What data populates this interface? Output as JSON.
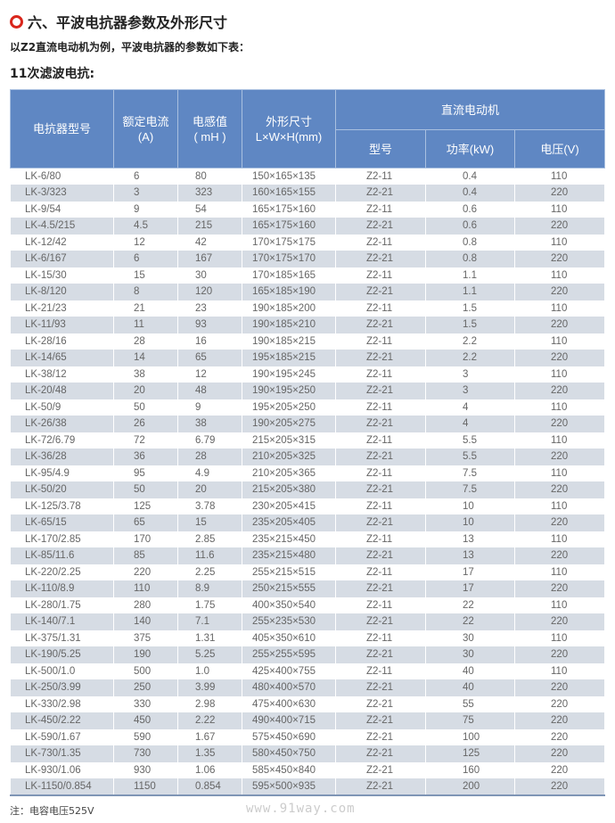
{
  "title": "六、平波电抗器参数及外形尺寸",
  "intro": "以Z2直流电动机为例，平波电抗器的参数如下表：",
  "subtitle": "11次滤波电抗:",
  "headers": {
    "model": "电抗器型号",
    "current": "额定电流\n(A)",
    "inductance": "电感值\n( mH )",
    "size": "外形尺寸\nL×W×H(mm)",
    "motor": "直流电动机",
    "motor_model": "型号",
    "power": "功率(kW)",
    "voltage": "电压(V)"
  },
  "rows": [
    [
      "LK-6/80",
      "6",
      "80",
      "150×165×135",
      "Z2-11",
      "0.4",
      "110"
    ],
    [
      "LK-3/323",
      "3",
      "323",
      "160×165×155",
      "Z2-21",
      "0.4",
      "220"
    ],
    [
      "LK-9/54",
      "9",
      "54",
      "165×175×160",
      "Z2-11",
      "0.6",
      "110"
    ],
    [
      "LK-4.5/215",
      "4.5",
      "215",
      "165×175×160",
      "Z2-21",
      "0.6",
      "220"
    ],
    [
      "LK-12/42",
      "12",
      "42",
      "170×175×175",
      "Z2-11",
      "0.8",
      "110"
    ],
    [
      "LK-6/167",
      "6",
      "167",
      "170×175×170",
      "Z2-21",
      "0.8",
      "220"
    ],
    [
      "LK-15/30",
      "15",
      "30",
      "170×185×165",
      "Z2-11",
      "1.1",
      "110"
    ],
    [
      "LK-8/120",
      "8",
      "120",
      "165×185×190",
      "Z2-21",
      "1.1",
      "220"
    ],
    [
      "LK-21/23",
      "21",
      "23",
      "190×185×200",
      "Z2-11",
      "1.5",
      "110"
    ],
    [
      "LK-11/93",
      "11",
      "93",
      "190×185×210",
      "Z2-21",
      "1.5",
      "220"
    ],
    [
      "LK-28/16",
      "28",
      "16",
      "190×185×215",
      "Z2-11",
      "2.2",
      "110"
    ],
    [
      "LK-14/65",
      "14",
      "65",
      "195×185×215",
      "Z2-21",
      "2.2",
      "220"
    ],
    [
      "LK-38/12",
      "38",
      "12",
      "190×195×245",
      "Z2-11",
      "3",
      "110"
    ],
    [
      "LK-20/48",
      "20",
      "48",
      "190×195×250",
      "Z2-21",
      "3",
      "220"
    ],
    [
      "LK-50/9",
      "50",
      "9",
      "195×205×250",
      "Z2-11",
      "4",
      "110"
    ],
    [
      "LK-26/38",
      "26",
      "38",
      "190×205×275",
      "Z2-21",
      "4",
      "220"
    ],
    [
      "LK-72/6.79",
      "72",
      "6.79",
      "215×205×315",
      "Z2-11",
      "5.5",
      "110"
    ],
    [
      "LK-36/28",
      "36",
      "28",
      "210×205×325",
      "Z2-21",
      "5.5",
      "220"
    ],
    [
      "LK-95/4.9",
      "95",
      "4.9",
      "210×205×365",
      "Z2-11",
      "7.5",
      "110"
    ],
    [
      "LK-50/20",
      "50",
      "20",
      "215×205×380",
      "Z2-21",
      "7.5",
      "220"
    ],
    [
      "LK-125/3.78",
      "125",
      "3.78",
      "230×205×415",
      "Z2-11",
      "10",
      "110"
    ],
    [
      "LK-65/15",
      "65",
      "15",
      "235×205×405",
      "Z2-21",
      "10",
      "220"
    ],
    [
      "LK-170/2.85",
      "170",
      "2.85",
      "235×215×450",
      "Z2-11",
      "13",
      "110"
    ],
    [
      "LK-85/11.6",
      "85",
      "11.6",
      "235×215×480",
      "Z2-21",
      "13",
      "220"
    ],
    [
      "LK-220/2.25",
      "220",
      "2.25",
      "255×215×515",
      "Z2-11",
      "17",
      "110"
    ],
    [
      "LK-110/8.9",
      "110",
      "8.9",
      "250×215×555",
      "Z2-21",
      "17",
      "220"
    ],
    [
      "LK-280/1.75",
      "280",
      "1.75",
      "400×350×540",
      "Z2-11",
      "22",
      "110"
    ],
    [
      "LK-140/7.1",
      "140",
      "7.1",
      "255×235×530",
      "Z2-21",
      "22",
      "220"
    ],
    [
      "LK-375/1.31",
      "375",
      "1.31",
      "405×350×610",
      "Z2-11",
      "30",
      "110"
    ],
    [
      "LK-190/5.25",
      "190",
      "5.25",
      "255×255×595",
      "Z2-21",
      "30",
      "220"
    ],
    [
      "LK-500/1.0",
      "500",
      "1.0",
      "425×400×755",
      "Z2-11",
      "40",
      "110"
    ],
    [
      "LK-250/3.99",
      "250",
      "3.99",
      "480×400×570",
      "Z2-21",
      "40",
      "220"
    ],
    [
      "LK-330/2.98",
      "330",
      "2.98",
      "475×400×630",
      "Z2-21",
      "55",
      "220"
    ],
    [
      "LK-450/2.22",
      "450",
      "2.22",
      "490×400×715",
      "Z2-21",
      "75",
      "220"
    ],
    [
      "LK-590/1.67",
      "590",
      "1.67",
      "575×450×690",
      "Z2-21",
      "100",
      "220"
    ],
    [
      "LK-730/1.35",
      "730",
      "1.35",
      "580×450×750",
      "Z2-21",
      "125",
      "220"
    ],
    [
      "LK-930/1.06",
      "930",
      "1.06",
      "585×450×840",
      "Z2-21",
      "160",
      "220"
    ],
    [
      "LK-1150/0.854",
      "1150",
      "0.854",
      "595×500×935",
      "Z2-21",
      "200",
      "220"
    ]
  ],
  "note": "注：电容电压525V",
  "watermark": "www.91way.com",
  "colors": {
    "header": "#5f87c3",
    "stripe": "#d6dce4",
    "accent": "#d9261c"
  }
}
